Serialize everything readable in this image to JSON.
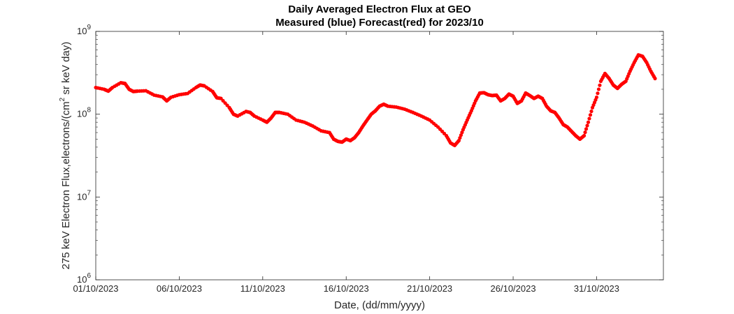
{
  "chart_data": {
    "type": "scatter",
    "title": "Daily Averaged Electron Flux at GEO",
    "subtitle": "Measured (blue) Forecast(red) for 2023/10",
    "xlabel": "Date, (dd/mm/yyyy)",
    "ylabel": "275 keV Electron Flux,electrons/(cm² sr keV day)",
    "ylabel_parts": {
      "before": "275 keV Electron Flux,electrons/(cm",
      "sup": "2",
      "after": " sr keV day)"
    },
    "x_ticks": [
      "01/10/2023",
      "06/10/2023",
      "11/10/2023",
      "16/10/2023",
      "21/10/2023",
      "26/10/2023",
      "31/10/2023"
    ],
    "y_ticks": [
      {
        "base": "10",
        "exp": "6"
      },
      {
        "base": "10",
        "exp": "7"
      },
      {
        "base": "10",
        "exp": "8"
      },
      {
        "base": "10",
        "exp": "9"
      }
    ],
    "x_range": [
      "01/10/2023",
      "04/11/2023"
    ],
    "y_range": [
      1000000,
      1000000000
    ],
    "y_scale": "log",
    "grid": false,
    "series": [
      {
        "name": "Forecast",
        "color": "#ff0000",
        "points": [
          [
            "2023-10-01",
            210000000.0
          ],
          [
            "2023-10-01 12:00",
            200000000.0
          ],
          [
            "2023-10-01 18:00",
            190000000.0
          ],
          [
            "2023-10-02",
            210000000.0
          ],
          [
            "2023-10-02 12:00",
            240000000.0
          ],
          [
            "2023-10-02 18:00",
            235000000.0
          ],
          [
            "2023-10-03",
            200000000.0
          ],
          [
            "2023-10-03 06:00",
            188000000.0
          ],
          [
            "2023-10-03 12:00",
            190000000.0
          ],
          [
            "2023-10-04",
            192000000.0
          ],
          [
            "2023-10-04 12:00",
            170000000.0
          ],
          [
            "2023-10-05",
            162000000.0
          ],
          [
            "2023-10-05 06:00",
            145000000.0
          ],
          [
            "2023-10-05 12:00",
            160000000.0
          ],
          [
            "2023-10-06",
            172000000.0
          ],
          [
            "2023-10-06 12:00",
            178000000.0
          ],
          [
            "2023-10-07",
            210000000.0
          ],
          [
            "2023-10-07 06:00",
            225000000.0
          ],
          [
            "2023-10-07 12:00",
            220000000.0
          ],
          [
            "2023-10-08",
            188000000.0
          ],
          [
            "2023-10-08 06:00",
            158000000.0
          ],
          [
            "2023-10-08 12:00",
            155000000.0
          ],
          [
            "2023-10-09",
            120000000.0
          ],
          [
            "2023-10-09 06:00",
            100000000.0
          ],
          [
            "2023-10-09 12:00",
            95000000.0
          ],
          [
            "2023-10-10",
            108000000.0
          ],
          [
            "2023-10-10 06:00",
            105000000.0
          ],
          [
            "2023-10-10 12:00",
            95000000.0
          ],
          [
            "2023-10-11",
            85000000.0
          ],
          [
            "2023-10-11 06:00",
            80000000.0
          ],
          [
            "2023-10-11 12:00",
            90000000.0
          ],
          [
            "2023-10-11 18:00",
            105000000.0
          ],
          [
            "2023-10-12",
            105000000.0
          ],
          [
            "2023-10-12 12:00",
            100000000.0
          ],
          [
            "2023-10-13",
            85000000.0
          ],
          [
            "2023-10-13 12:00",
            80000000.0
          ],
          [
            "2023-10-14",
            72000000.0
          ],
          [
            "2023-10-14 12:00",
            63000000.0
          ],
          [
            "2023-10-15",
            60000000.0
          ],
          [
            "2023-10-15 06:00",
            50000000.0
          ],
          [
            "2023-10-15 12:00",
            47000000.0
          ],
          [
            "2023-10-15 18:00",
            46000000.0
          ],
          [
            "2023-10-16",
            50000000.0
          ],
          [
            "2023-10-16 06:00",
            48000000.0
          ],
          [
            "2023-10-16 12:00",
            52000000.0
          ],
          [
            "2023-10-16 18:00",
            60000000.0
          ],
          [
            "2023-10-17",
            72000000.0
          ],
          [
            "2023-10-17 06:00",
            85000000.0
          ],
          [
            "2023-10-17 12:00",
            100000000.0
          ],
          [
            "2023-10-17 18:00",
            110000000.0
          ],
          [
            "2023-10-18",
            125000000.0
          ],
          [
            "2023-10-18 06:00",
            132000000.0
          ],
          [
            "2023-10-18 12:00",
            125000000.0
          ],
          [
            "2023-10-19",
            122000000.0
          ],
          [
            "2023-10-19 12:00",
            115000000.0
          ],
          [
            "2023-10-20",
            105000000.0
          ],
          [
            "2023-10-20 12:00",
            95000000.0
          ],
          [
            "2023-10-21",
            85000000.0
          ],
          [
            "2023-10-21 12:00",
            70000000.0
          ],
          [
            "2023-10-22",
            55000000.0
          ],
          [
            "2023-10-22 06:00",
            45000000.0
          ],
          [
            "2023-10-22 12:00",
            42000000.0
          ],
          [
            "2023-10-22 18:00",
            48000000.0
          ],
          [
            "2023-10-23",
            65000000.0
          ],
          [
            "2023-10-23 06:00",
            85000000.0
          ],
          [
            "2023-10-23 12:00",
            110000000.0
          ],
          [
            "2023-10-23 18:00",
            145000000.0
          ],
          [
            "2023-10-24",
            180000000.0
          ],
          [
            "2023-10-24 06:00",
            182000000.0
          ],
          [
            "2023-10-24 12:00",
            172000000.0
          ],
          [
            "2023-10-24 18:00",
            168000000.0
          ],
          [
            "2023-10-25",
            170000000.0
          ],
          [
            "2023-10-25 06:00",
            145000000.0
          ],
          [
            "2023-10-25 12:00",
            155000000.0
          ],
          [
            "2023-10-25 18:00",
            175000000.0
          ],
          [
            "2023-10-26",
            165000000.0
          ],
          [
            "2023-10-26 06:00",
            135000000.0
          ],
          [
            "2023-10-26 12:00",
            145000000.0
          ],
          [
            "2023-10-26 18:00",
            180000000.0
          ],
          [
            "2023-10-27",
            168000000.0
          ],
          [
            "2023-10-27 06:00",
            155000000.0
          ],
          [
            "2023-10-27 12:00",
            165000000.0
          ],
          [
            "2023-10-27 18:00",
            155000000.0
          ],
          [
            "2023-10-28",
            125000000.0
          ],
          [
            "2023-10-28 06:00",
            110000000.0
          ],
          [
            "2023-10-28 12:00",
            105000000.0
          ],
          [
            "2023-10-28 18:00",
            90000000.0
          ],
          [
            "2023-10-29",
            75000000.0
          ],
          [
            "2023-10-29 06:00",
            70000000.0
          ],
          [
            "2023-10-29 12:00",
            62000000.0
          ],
          [
            "2023-10-29 18:00",
            55000000.0
          ],
          [
            "2023-10-30",
            50000000.0
          ],
          [
            "2023-10-30 06:00",
            55000000.0
          ],
          [
            "2023-10-30 12:00",
            80000000.0
          ],
          [
            "2023-10-30 18:00",
            120000000.0
          ],
          [
            "2023-10-31",
            160000000.0
          ],
          [
            "2023-10-31 06:00",
            250000000.0
          ],
          [
            "2023-10-31 12:00",
            310000000.0
          ],
          [
            "2023-10-31 18:00",
            270000000.0
          ],
          [
            "2023-11-01",
            225000000.0
          ],
          [
            "2023-11-01 06:00",
            205000000.0
          ],
          [
            "2023-11-01 12:00",
            230000000.0
          ],
          [
            "2023-11-01 18:00",
            250000000.0
          ],
          [
            "2023-11-02",
            330000000.0
          ],
          [
            "2023-11-02 06:00",
            420000000.0
          ],
          [
            "2023-11-02 12:00",
            520000000.0
          ],
          [
            "2023-11-02 18:00",
            500000000.0
          ],
          [
            "2023-11-03",
            420000000.0
          ],
          [
            "2023-11-03 06:00",
            330000000.0
          ],
          [
            "2023-11-03 12:00",
            270000000.0
          ]
        ]
      }
    ]
  }
}
